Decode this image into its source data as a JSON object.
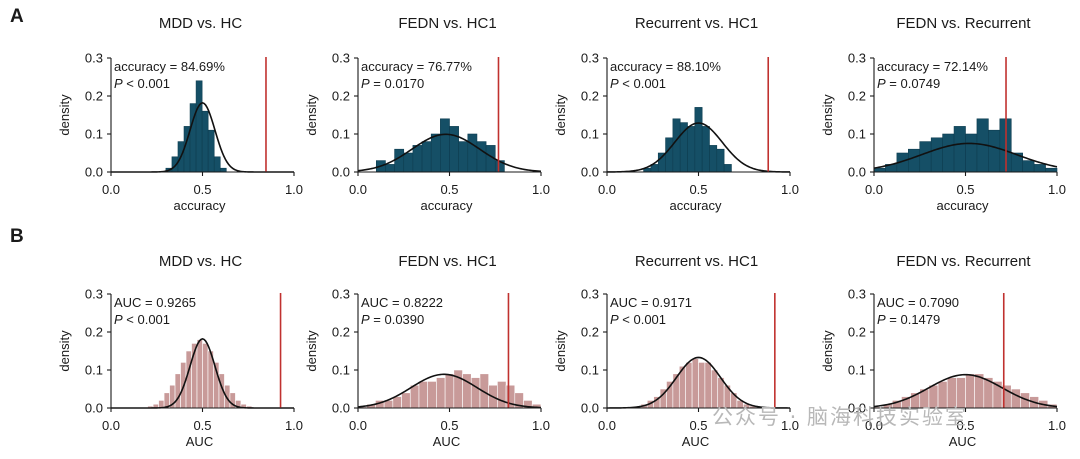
{
  "panel_labels": [
    "A",
    "B"
  ],
  "watermark": "公众号 · 脑海科技实验室",
  "colors": {
    "accuracy_bar": "#154f66",
    "accuracy_bar_edge": "#0e3d50",
    "auc_bar": "#c89a99",
    "auc_bar_edge": "#ffffff",
    "fit_line": "#111111",
    "observed_line": "#c0312f",
    "axis": "#1a1a1a"
  },
  "chart_data": [
    {
      "type": "bar",
      "row": "A",
      "title": "MDD vs. HC",
      "xlabel": "accuracy",
      "ylabel": "density",
      "xlim": [
        0,
        1
      ],
      "ylim": [
        0,
        0.3
      ],
      "xticks": [
        "0.0",
        "0.5",
        "1.0"
      ],
      "yticks": [
        "0.0",
        "0.1",
        "0.2",
        "0.3"
      ],
      "bin_edges_start": 0.3,
      "bin_width": 0.033,
      "values": [
        0.01,
        0.04,
        0.08,
        0.12,
        0.18,
        0.24,
        0.16,
        0.11,
        0.04,
        0.01
      ],
      "fit": {
        "mean": 0.5,
        "sd": 0.068,
        "scale": 0.031
      },
      "stat_line": "accuracy = 84.69%",
      "p_label": "P",
      "p_text": " < 0.001",
      "observed": 0.8469
    },
    {
      "type": "bar",
      "row": "A",
      "title": "FEDN vs. HC1",
      "xlabel": "accuracy",
      "ylabel": "density",
      "xlim": [
        0,
        1
      ],
      "ylim": [
        0,
        0.3
      ],
      "xticks": [
        "0.0",
        "0.5",
        "1.0"
      ],
      "yticks": [
        "0.0",
        "0.1",
        "0.2",
        "0.3"
      ],
      "bin_edges_start": 0.05,
      "bin_width": 0.05,
      "values": [
        0.0,
        0.03,
        0.02,
        0.06,
        0.05,
        0.07,
        0.08,
        0.1,
        0.14,
        0.12,
        0.08,
        0.1,
        0.08,
        0.07,
        0.03
      ],
      "fit": {
        "mean": 0.48,
        "sd": 0.185,
        "scale": 0.046
      },
      "stat_line": "accuracy = 76.77%",
      "p_label": "P",
      "p_text": " = 0.0170",
      "observed": 0.7677
    },
    {
      "type": "bar",
      "row": "A",
      "title": "Recurrent vs. HC1",
      "xlabel": "accuracy",
      "ylabel": "density",
      "xlim": [
        0,
        1
      ],
      "ylim": [
        0,
        0.3
      ],
      "xticks": [
        "0.0",
        "0.5",
        "1.0"
      ],
      "yticks": [
        "0.0",
        "0.1",
        "0.2",
        "0.3"
      ],
      "bin_edges_start": 0.2,
      "bin_width": 0.04,
      "values": [
        0.01,
        0.02,
        0.05,
        0.09,
        0.14,
        0.13,
        0.12,
        0.17,
        0.12,
        0.07,
        0.06,
        0.02
      ],
      "fit": {
        "mean": 0.5,
        "sd": 0.13,
        "scale": 0.042
      },
      "stat_line": "accuracy = 88.10%",
      "p_label": "P",
      "p_text": " < 0.001",
      "observed": 0.881
    },
    {
      "type": "bar",
      "row": "A",
      "title": "FEDN vs. Recurrent",
      "xlabel": "accuracy",
      "ylabel": "density",
      "xlim": [
        0,
        1
      ],
      "ylim": [
        0,
        0.3
      ],
      "xticks": [
        "0.0",
        "0.5",
        "1.0"
      ],
      "yticks": [
        "0.0",
        "0.1",
        "0.2",
        "0.3"
      ],
      "bin_edges_start": 0.0,
      "bin_width": 0.0625,
      "values": [
        0.01,
        0.02,
        0.05,
        0.06,
        0.08,
        0.09,
        0.1,
        0.12,
        0.1,
        0.14,
        0.11,
        0.14,
        0.05,
        0.03,
        0.02,
        0.01
      ],
      "fit": {
        "mean": 0.52,
        "sd": 0.26,
        "scale": 0.049
      },
      "stat_line": "accuracy = 72.14%",
      "p_label": "P",
      "p_text": " = 0.0749",
      "observed": 0.7214
    },
    {
      "type": "bar",
      "row": "B",
      "title": "MDD vs. HC",
      "xlabel": "AUC",
      "ylabel": "density",
      "xlim": [
        0,
        1
      ],
      "ylim": [
        0,
        0.3
      ],
      "xticks": [
        "0.0",
        "0.5",
        "1.0"
      ],
      "yticks": [
        "0.0",
        "0.1",
        "0.2",
        "0.3"
      ],
      "bin_edges_start": 0.2,
      "bin_width": 0.03,
      "values": [
        0.005,
        0.01,
        0.02,
        0.04,
        0.06,
        0.09,
        0.12,
        0.15,
        0.17,
        0.18,
        0.17,
        0.15,
        0.12,
        0.09,
        0.06,
        0.04,
        0.02,
        0.01,
        0.005
      ],
      "fit": {
        "mean": 0.5,
        "sd": 0.068,
        "scale": 0.031
      },
      "stat_line": "AUC = 0.9265",
      "p_label": "P",
      "p_text": " < 0.001",
      "observed": 0.9265
    },
    {
      "type": "bar",
      "row": "B",
      "title": "FEDN vs. HC1",
      "xlabel": "AUC",
      "ylabel": "density",
      "xlim": [
        0,
        1
      ],
      "ylim": [
        0,
        0.3
      ],
      "xticks": [
        "0.0",
        "0.5",
        "1.0"
      ],
      "yticks": [
        "0.0",
        "0.1",
        "0.2",
        "0.3"
      ],
      "bin_edges_start": 0.0,
      "bin_width": 0.0476,
      "values": [
        0.003,
        0.01,
        0.02,
        0.02,
        0.03,
        0.04,
        0.06,
        0.07,
        0.07,
        0.08,
        0.09,
        0.1,
        0.09,
        0.08,
        0.09,
        0.06,
        0.07,
        0.06,
        0.04,
        0.02,
        0.01
      ],
      "fit": {
        "mean": 0.47,
        "sd": 0.18,
        "scale": 0.04
      },
      "stat_line": "AUC = 0.8222",
      "p_label": "P",
      "p_text": " = 0.0390",
      "observed": 0.8222
    },
    {
      "type": "bar",
      "row": "B",
      "title": "Recurrent vs. HC1",
      "xlabel": "AUC",
      "ylabel": "density",
      "xlim": [
        0,
        1
      ],
      "ylim": [
        0,
        0.3
      ],
      "xticks": [
        "0.0",
        "0.5",
        "1.0"
      ],
      "yticks": [
        "0.0",
        "0.1",
        "0.2",
        "0.3"
      ],
      "bin_edges_start": 0.15,
      "bin_width": 0.035,
      "values": [
        0.005,
        0.01,
        0.02,
        0.03,
        0.05,
        0.07,
        0.09,
        0.11,
        0.12,
        0.13,
        0.12,
        0.12,
        0.1,
        0.08,
        0.06,
        0.04,
        0.02,
        0.01,
        0.005
      ],
      "fit": {
        "mean": 0.5,
        "sd": 0.12,
        "scale": 0.04
      },
      "stat_line": "AUC = 0.9171",
      "p_label": "P",
      "p_text": " < 0.001",
      "observed": 0.9171
    },
    {
      "type": "bar",
      "row": "B",
      "title": "FEDN vs. Recurrent",
      "xlabel": "AUC",
      "ylabel": "density",
      "xlim": [
        0,
        1
      ],
      "ylim": [
        0,
        0.3
      ],
      "xticks": [
        "0.0",
        "0.5",
        "1.0"
      ],
      "yticks": [
        "0.0",
        "0.1",
        "0.2",
        "0.3"
      ],
      "bin_edges_start": 0.0,
      "bin_width": 0.05,
      "values": [
        0.003,
        0.01,
        0.02,
        0.03,
        0.04,
        0.05,
        0.06,
        0.07,
        0.08,
        0.08,
        0.09,
        0.09,
        0.08,
        0.07,
        0.06,
        0.05,
        0.04,
        0.03,
        0.02,
        0.01
      ],
      "fit": {
        "mean": 0.5,
        "sd": 0.2,
        "scale": 0.044
      },
      "stat_line": "AUC = 0.7090",
      "p_label": "P",
      "p_text": " = 0.1479",
      "observed": 0.709
    }
  ]
}
